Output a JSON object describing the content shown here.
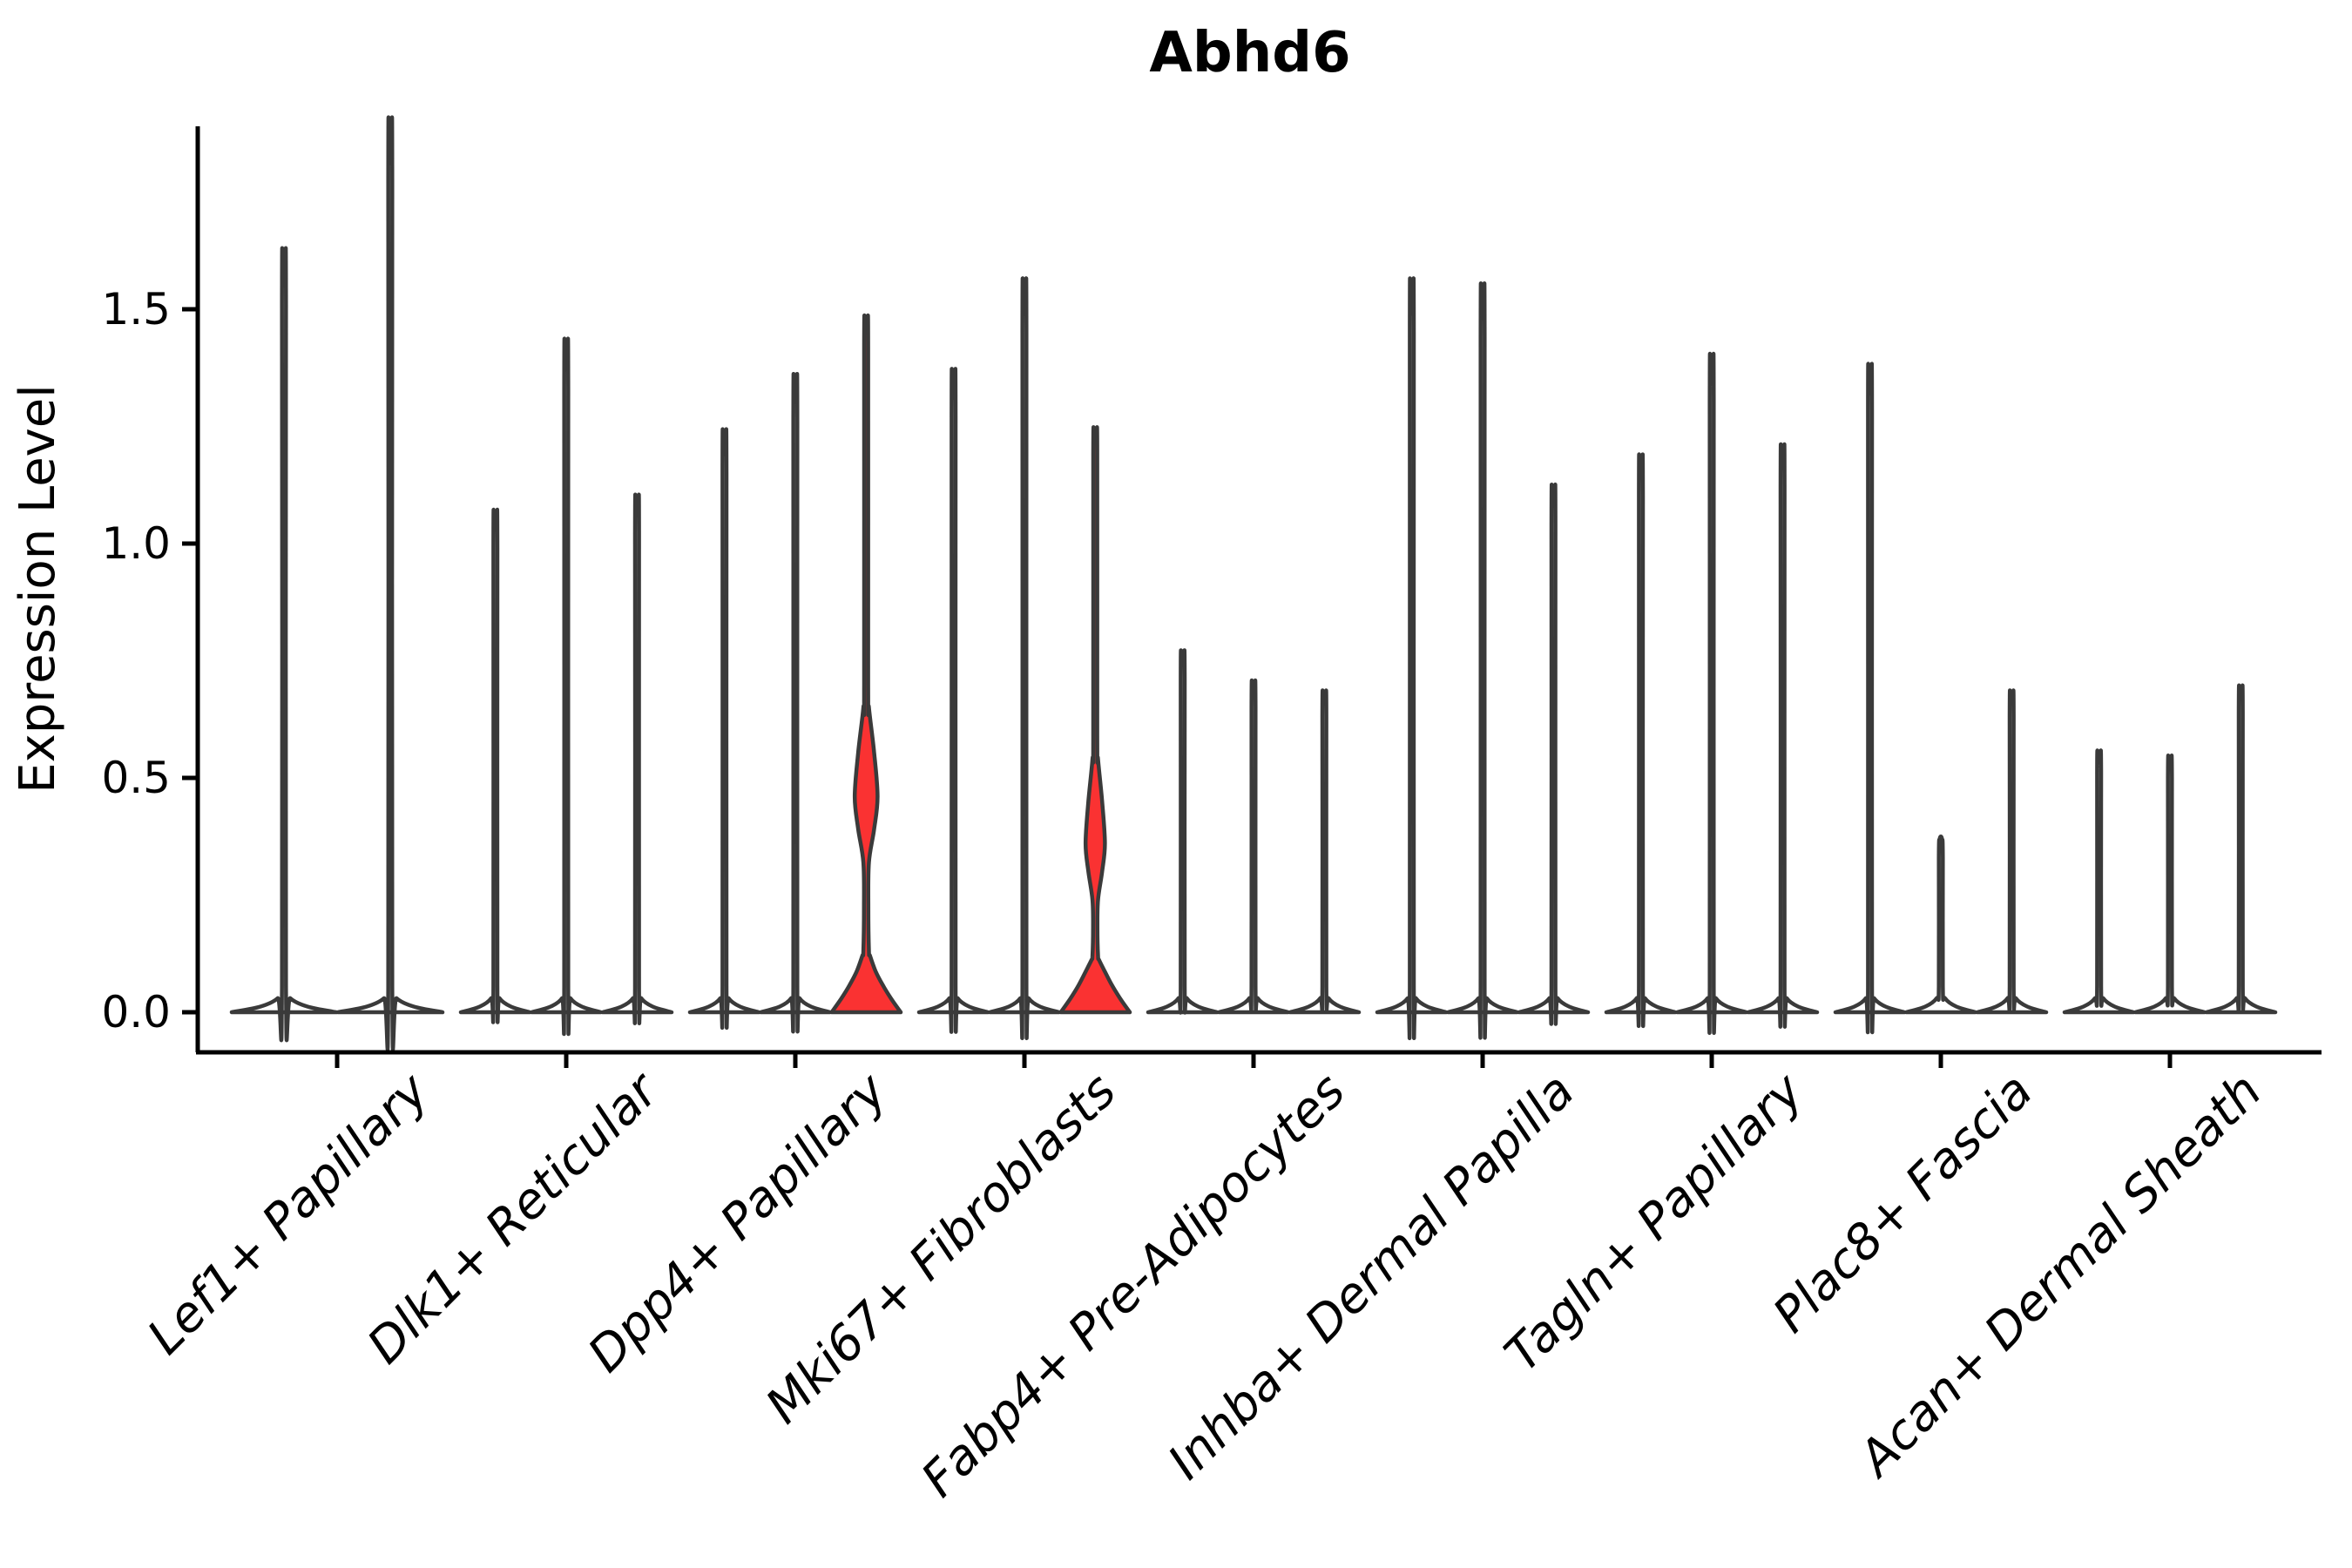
{
  "chart_data": {
    "type": "violin",
    "title": "Abhd6",
    "ylabel": "Expression Level",
    "ytick_labels": [
      "0.0",
      "0.5",
      "1.0",
      "1.5"
    ],
    "ytick_values": [
      0.0,
      0.5,
      1.0,
      1.5
    ],
    "ylim": [
      -0.086,
      1.89
    ],
    "grid": false,
    "legend": "none",
    "categories": [
      "Lef1+ Papillary",
      "Dlk1+ Reticular",
      "Dpp4+ Papillary",
      "Mki67+ Fibroblasts",
      "Fabp4+ Pre-Adipocytes",
      "Inhba+ Dermal Papilla",
      "Tagln+ Papillary",
      "Plac8+ Fascia",
      "Acan+ Dermal Sheath"
    ],
    "groups": [
      {
        "category": "Lef1+ Papillary",
        "violins": [
          {
            "max": 1.55
          },
          {
            "max": 1.81
          }
        ]
      },
      {
        "category": "Dlk1+ Reticular",
        "violins": [
          {
            "max": 1.03
          },
          {
            "max": 1.37
          },
          {
            "max": 1.06
          }
        ]
      },
      {
        "category": "Dpp4+ Papillary",
        "violins": [
          {
            "max": 1.19
          },
          {
            "max": 1.3
          },
          {
            "max": 1.46,
            "highlight": true,
            "base_top": 0.13,
            "bulge": {
              "low": 0.32,
              "peak": 0.46,
              "high": 0.65,
              "peak_halfwidth": 0.33
            }
          }
        ]
      },
      {
        "category": "Mki67+ Fibroblasts",
        "violins": [
          {
            "max": 1.31
          },
          {
            "max": 1.49
          },
          {
            "max": 1.23,
            "highlight": true,
            "base_top": 0.12,
            "bulge": {
              "low": 0.24,
              "peak": 0.36,
              "high": 0.54,
              "peak_halfwidth": 0.28
            }
          }
        ]
      },
      {
        "category": "Fabp4+ Pre-Adipocytes",
        "violins": [
          {
            "max": 0.75
          },
          {
            "max": 0.69
          },
          {
            "max": 0.67
          }
        ]
      },
      {
        "category": "Inhba+ Dermal Papilla",
        "violins": [
          {
            "max": 1.49
          },
          {
            "max": 1.48
          },
          {
            "max": 1.08
          }
        ]
      },
      {
        "category": "Tagln+ Papillary",
        "violins": [
          {
            "max": 1.14
          },
          {
            "max": 1.34
          },
          {
            "max": 1.16
          }
        ]
      },
      {
        "category": "Plac8+ Fascia",
        "violins": [
          {
            "max": 1.32
          },
          {
            "max": 0.37
          },
          {
            "max": 0.67
          }
        ]
      },
      {
        "category": "Acan+ Dermal Sheath",
        "violins": [
          {
            "max": 0.55
          },
          {
            "max": 0.54
          },
          {
            "max": 0.68
          }
        ]
      }
    ],
    "colors": {
      "highlight_fill": "#fa3232",
      "violin_fill": "#ffffff",
      "violin_outline": "#3a3a3a",
      "axis": "#000000",
      "background": "#ffffff"
    }
  }
}
